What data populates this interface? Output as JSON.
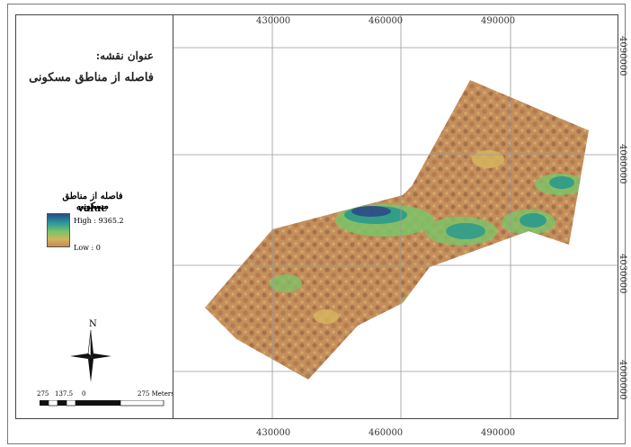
{
  "map": {
    "title_label": "عنوان نقشه:",
    "title": "فاصله از مناطق مسکونی",
    "legend": {
      "heading": "فاصله از مناطق مسکونی",
      "field": "value",
      "high_label": "High : 9365.2",
      "low_label": "Low : 0",
      "high_value": 9365.2,
      "low_value": 0,
      "ramp_colors": [
        "#2a4a8a",
        "#2a9a9a",
        "#7cc468",
        "#d4b35c",
        "#c48a56"
      ]
    },
    "north_arrow": {
      "label": "N"
    },
    "scale_bar": {
      "labels": [
        "275",
        "137.5",
        "0",
        "275 Meters"
      ]
    },
    "x_ticks": [
      "430000",
      "460000",
      "490000"
    ],
    "y_ticks": [
      "4090000",
      "4060000",
      "4030000",
      "4000000"
    ],
    "colors": {
      "frame": "#444444",
      "grid": "#9a9a9a",
      "brown": "#b57e52",
      "tan": "#cfa565",
      "green": "#3fb36a",
      "teal": "#2a9a8c",
      "navy": "#2e4a86"
    }
  }
}
